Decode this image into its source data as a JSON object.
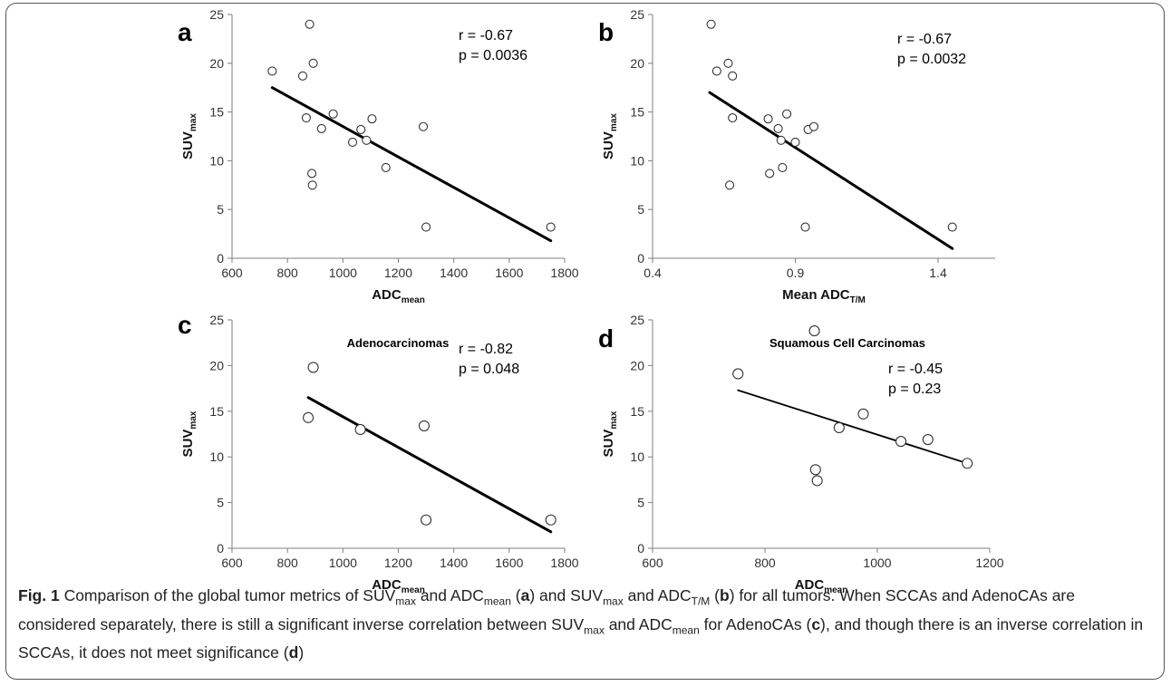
{
  "chart_data": [
    {
      "type": "scatter",
      "panel": "a",
      "title": "",
      "xlabel": "ADC",
      "xlabel_sub": "mean",
      "ylabel": "SUV",
      "ylabel_sub": "max",
      "xlim": [
        600,
        1800
      ],
      "ylim": [
        0,
        25
      ],
      "xticks": [
        600,
        800,
        1000,
        1200,
        1400,
        1600,
        1800
      ],
      "yticks": [
        0,
        5,
        10,
        15,
        20,
        25
      ],
      "xtick_labels": [
        "600",
        "800",
        "1000",
        "1200",
        "1400",
        "1600",
        "1800"
      ],
      "ytick_labels": [
        "0",
        "5",
        "10",
        "15",
        "20",
        "25"
      ],
      "stats": [
        "r = -0.67",
        "p = 0.0036"
      ],
      "points": [
        [
          745,
          19.2
        ],
        [
          855,
          18.7
        ],
        [
          880,
          24.0
        ],
        [
          893,
          20.0
        ],
        [
          868,
          14.4
        ],
        [
          965,
          14.8
        ],
        [
          923,
          13.3
        ],
        [
          1065,
          13.2
        ],
        [
          1105,
          14.3
        ],
        [
          1035,
          11.9
        ],
        [
          1085,
          12.1
        ],
        [
          888,
          8.7
        ],
        [
          890,
          7.5
        ],
        [
          1155,
          9.3
        ],
        [
          1290,
          13.5
        ],
        [
          1300,
          3.2
        ],
        [
          1750,
          3.2
        ]
      ],
      "trendline": [
        [
          745,
          17.5
        ],
        [
          1750,
          1.8
        ]
      ]
    },
    {
      "type": "scatter",
      "panel": "b",
      "title": "",
      "xlabel": "Mean ADC",
      "xlabel_sub": "T/M",
      "ylabel": "SUV",
      "ylabel_sub": "max",
      "xlim": [
        0.4,
        1.6
      ],
      "ylim": [
        0,
        25
      ],
      "xticks": [
        0.4,
        0.9,
        1.4
      ],
      "yticks": [
        0,
        5,
        10,
        15,
        20,
        25
      ],
      "xtick_labels": [
        "0.4",
        "0.9",
        "1.4"
      ],
      "ytick_labels": [
        "0",
        "5",
        "10",
        "15",
        "20",
        "25"
      ],
      "stats": [
        "r = -0.67",
        "p = 0.0032"
      ],
      "points": [
        [
          0.605,
          24.0
        ],
        [
          0.625,
          19.2
        ],
        [
          0.665,
          20.0
        ],
        [
          0.68,
          18.7
        ],
        [
          0.68,
          14.4
        ],
        [
          0.805,
          14.3
        ],
        [
          0.87,
          14.8
        ],
        [
          0.84,
          13.3
        ],
        [
          0.85,
          12.1
        ],
        [
          0.9,
          11.9
        ],
        [
          0.945,
          13.2
        ],
        [
          0.965,
          13.5
        ],
        [
          0.81,
          8.7
        ],
        [
          0.855,
          9.3
        ],
        [
          0.67,
          7.5
        ],
        [
          0.935,
          3.2
        ],
        [
          1.45,
          3.2
        ]
      ],
      "trendline": [
        [
          0.6,
          17.0
        ],
        [
          1.45,
          1.0
        ]
      ]
    },
    {
      "type": "scatter",
      "panel": "c",
      "title": "Adenocarcinomas",
      "xlabel": "ADC",
      "xlabel_sub": "mean",
      "ylabel": "SUV",
      "ylabel_sub": "max",
      "xlim": [
        600,
        1800
      ],
      "ylim": [
        0,
        25
      ],
      "xticks": [
        600,
        800,
        1000,
        1200,
        1400,
        1600,
        1800
      ],
      "yticks": [
        0,
        5,
        10,
        15,
        20,
        25
      ],
      "xtick_labels": [
        "600",
        "800",
        "1000",
        "1200",
        "1400",
        "1600",
        "1800"
      ],
      "ytick_labels": [
        "0",
        "5",
        "10",
        "15",
        "20",
        "25"
      ],
      "stats": [
        "r = -0.82",
        "p = 0.048"
      ],
      "points": [
        [
          893,
          19.8
        ],
        [
          875,
          14.3
        ],
        [
          1063,
          13.0
        ],
        [
          1293,
          13.4
        ],
        [
          1300,
          3.1
        ],
        [
          1750,
          3.1
        ]
      ],
      "trendline": [
        [
          875,
          16.5
        ],
        [
          1750,
          1.8
        ]
      ]
    },
    {
      "type": "scatter",
      "panel": "d",
      "title": "Squamous Cell Carcinomas",
      "xlabel": "ADC",
      "xlabel_sub": "mean",
      "ylabel": "SUV",
      "ylabel_sub": "max",
      "xlim": [
        600,
        1200
      ],
      "ylim": [
        0,
        25
      ],
      "xticks": [
        600,
        800,
        1000,
        1200
      ],
      "yticks": [
        0,
        5,
        10,
        15,
        20,
        25
      ],
      "xtick_labels": [
        "600",
        "800",
        "1000",
        "1200"
      ],
      "ytick_labels": [
        "0",
        "5",
        "10",
        "15",
        "20",
        "25"
      ],
      "stats": [
        "r = -0.45",
        "p = 0.23"
      ],
      "points": [
        [
          752,
          19.1
        ],
        [
          888,
          23.8
        ],
        [
          975,
          14.7
        ],
        [
          932,
          13.2
        ],
        [
          1042,
          11.7
        ],
        [
          1090,
          11.9
        ],
        [
          890,
          8.6
        ],
        [
          893,
          7.4
        ],
        [
          1160,
          9.3
        ]
      ],
      "trendline": [
        [
          752,
          17.3
        ],
        [
          1160,
          9.3
        ]
      ]
    }
  ],
  "caption": {
    "label": "Fig. 1",
    "parts": [
      {
        "t": " Comparison of the global tumor metrics of SUV"
      },
      {
        "t": "max",
        "sub": true
      },
      {
        "t": " and ADC"
      },
      {
        "t": "mean",
        "sub": true
      },
      {
        "t": " ("
      },
      {
        "t": "a",
        "b": true
      },
      {
        "t": ") and SUV"
      },
      {
        "t": "max",
        "sub": true
      },
      {
        "t": " and ADC"
      },
      {
        "t": "T/M",
        "sub": true
      },
      {
        "t": " ("
      },
      {
        "t": "b",
        "b": true
      },
      {
        "t": ") for all tumors. When SCCAs and AdenoCAs are considered separately, there is still a significant inverse correlation between SUV"
      },
      {
        "t": "max",
        "sub": true
      },
      {
        "t": " and ADC"
      },
      {
        "t": "mean",
        "sub": true
      },
      {
        "t": " for AdenoCAs ("
      },
      {
        "t": "c",
        "b": true
      },
      {
        "t": "), and though there is an inverse correlation in SCCAs, it does not meet significance ("
      },
      {
        "t": "d",
        "b": true
      },
      {
        "t": ")"
      }
    ]
  }
}
